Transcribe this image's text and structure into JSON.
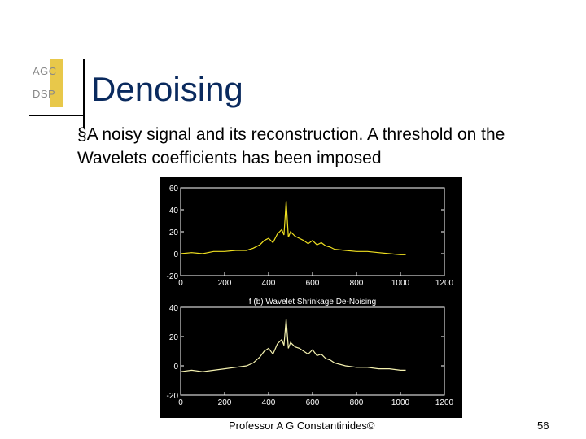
{
  "logo": {
    "line1": "AGC",
    "line2": "DSP"
  },
  "title": "Denoising",
  "bullet": {
    "marker": "§",
    "text": "A noisy signal and its reconstruction. A threshold on the Wavelets coefficients has been imposed"
  },
  "footer": {
    "author": "Professor A G Constantinides©",
    "page": "56"
  },
  "colors": {
    "plot_background": "#000000",
    "noisy_signal": "#f0e020",
    "reconstructed_signal": "#f5f2b0",
    "title": "#0a2a5e"
  },
  "chart_data": [
    {
      "type": "line",
      "title": "",
      "xlabel": "",
      "ylabel": "",
      "xlim": [
        0,
        1200
      ],
      "ylim": [
        -20,
        60
      ],
      "xticks": [
        "0",
        "200",
        "400",
        "600",
        "800",
        "1000",
        "1200"
      ],
      "yticks": [
        "60",
        "40",
        "20",
        "0",
        "-20"
      ],
      "grid": false,
      "series": [
        {
          "name": "",
          "x": [
            0,
            50,
            100,
            150,
            200,
            250,
            300,
            330,
            360,
            380,
            400,
            420,
            440,
            460,
            470,
            480,
            490,
            500,
            520,
            540,
            560,
            580,
            600,
            620,
            640,
            660,
            680,
            700,
            750,
            800,
            850,
            900,
            950,
            1000,
            1024
          ],
          "y": [
            0,
            1,
            0,
            2,
            2,
            3,
            3,
            5,
            8,
            12,
            14,
            10,
            18,
            22,
            17,
            48,
            15,
            20,
            16,
            14,
            12,
            9,
            12,
            8,
            10,
            7,
            6,
            4,
            3,
            2,
            2,
            1,
            0,
            -1,
            -1
          ]
        }
      ]
    },
    {
      "type": "line",
      "title": "f (b) Wavelet Shrinkage De-Noising",
      "xlabel": "",
      "ylabel": "",
      "xlim": [
        0,
        1200
      ],
      "ylim": [
        -20,
        40
      ],
      "xticks": [
        "0",
        "200",
        "400",
        "600",
        "800",
        "1000",
        "1200"
      ],
      "yticks": [
        "40",
        "20",
        "0",
        "-20"
      ],
      "grid": false,
      "series": [
        {
          "name": "",
          "x": [
            0,
            50,
            100,
            150,
            200,
            250,
            300,
            330,
            360,
            380,
            400,
            420,
            440,
            460,
            470,
            480,
            490,
            500,
            520,
            540,
            560,
            580,
            600,
            620,
            640,
            660,
            680,
            700,
            750,
            800,
            850,
            900,
            950,
            1000,
            1024
          ],
          "y": [
            -4,
            -3,
            -4,
            -3,
            -2,
            -1,
            0,
            2,
            6,
            10,
            12,
            8,
            15,
            18,
            14,
            32,
            12,
            16,
            13,
            12,
            10,
            8,
            11,
            7,
            8,
            5,
            4,
            2,
            0,
            -1,
            -1,
            -2,
            -2,
            -3,
            -3
          ]
        }
      ]
    }
  ]
}
